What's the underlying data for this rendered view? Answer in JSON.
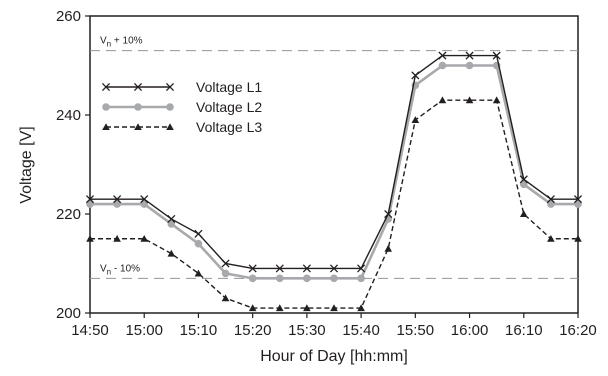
{
  "chart_data": {
    "type": "line",
    "xlabel": "Hour of Day [hh:mm]",
    "ylabel": "Voltage [V]",
    "ylim": [
      200,
      260
    ],
    "yticks": [
      200,
      220,
      240,
      260
    ],
    "xticks": [
      "14:50",
      "15:00",
      "15:10",
      "15:20",
      "15:30",
      "15:40",
      "15:50",
      "16:00",
      "16:10",
      "16:20"
    ],
    "xlim": [
      "14:50",
      "16:20"
    ],
    "grid": false,
    "legend_position": "top-left",
    "x": [
      "14:50",
      "14:55",
      "15:00",
      "15:05",
      "15:10",
      "15:15",
      "15:20",
      "15:25",
      "15:30",
      "15:35",
      "15:40",
      "15:45",
      "15:50",
      "15:55",
      "16:00",
      "16:05",
      "16:10",
      "16:15",
      "16:20"
    ],
    "series": [
      {
        "name": "Voltage L1",
        "style": "solid-x",
        "color": "#231f20",
        "values": [
          223,
          223,
          223,
          219,
          216,
          210,
          209,
          209,
          209,
          209,
          209,
          220,
          248,
          252,
          252,
          252,
          227,
          223,
          223
        ]
      },
      {
        "name": "Voltage L2",
        "style": "solid-circle",
        "color": "#a7a9ac",
        "values": [
          222,
          222,
          222,
          218,
          214,
          208,
          207,
          207,
          207,
          207,
          207,
          219,
          246,
          250,
          250,
          250,
          226,
          222,
          222
        ]
      },
      {
        "name": "Voltage L3",
        "style": "dashed-triangle",
        "color": "#231f20",
        "values": [
          215,
          215,
          215,
          212,
          208,
          203,
          201,
          201,
          201,
          201,
          201,
          213,
          239,
          243,
          243,
          243,
          220,
          215,
          215
        ]
      }
    ],
    "reference_lines": [
      {
        "label_main": "V",
        "label_sub": "n",
        "label_rest": " + 10%",
        "value": 253
      },
      {
        "label_main": "V",
        "label_sub": "n",
        "label_rest": " - 10%",
        "value": 207
      }
    ]
  }
}
